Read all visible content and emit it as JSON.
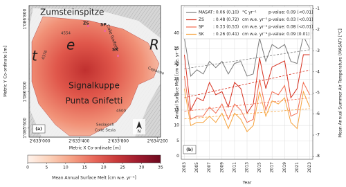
{
  "chart_data": [
    {
      "type": "map",
      "panel_label": "(a)",
      "xlabel": "Metric X Co-ordinate [m]",
      "ylabel": "Metric Y Co-ordinate [m]",
      "xlim": [
        2632890,
        2634230
      ],
      "ylim": [
        1085500,
        1086950
      ],
      "xticks": [
        {
          "value": 2633000,
          "label": "2'633'000"
        },
        {
          "value": 2633400,
          "label": "2'633'400"
        },
        {
          "value": 2633800,
          "label": "2'633'800"
        },
        {
          "value": 2634200,
          "label": "2'634'200"
        }
      ],
      "yticks": [
        {
          "value": 1086800,
          "label": "1'086'800"
        },
        {
          "value": 1086000,
          "label": "1'086'000"
        },
        {
          "value": 1085600,
          "label": "1'085'600"
        }
      ],
      "labels": [
        "Zumsteinspitze",
        "ZS",
        "SP",
        "Colle Gnifetti",
        "4554",
        "4376",
        "SK",
        "Signalkuppe",
        "Punta Gnifetti",
        "Capanna",
        "4500",
        "Sesiajoch",
        "Colle Sesia",
        "t",
        "e",
        "R",
        "N"
      ],
      "colorbar": {
        "label": "Mean Annual Surface Melt [cm w.e. yr⁻¹]",
        "lim": [
          0,
          35
        ],
        "ticks": [
          0,
          5,
          10,
          15,
          20,
          25,
          30,
          35
        ],
        "colors": [
          "#fff3ec",
          "#fbd0b8",
          "#f5a084",
          "#e8685a",
          "#c93a3a",
          "#9e1b2e",
          "#6e0a1f"
        ]
      }
    },
    {
      "type": "line",
      "panel_label": "(b)",
      "xlabel": "Year",
      "ylabel": "Annual Surface Melt [cm w.e. yr⁻¹]",
      "y2label": "Mean Annual Summer Air Temperature (MASAT) [°C]",
      "x": [
        2003,
        2004,
        2005,
        2006,
        2007,
        2008,
        2009,
        2010,
        2011,
        2012,
        2013,
        2014,
        2015,
        2016,
        2017,
        2018,
        2019,
        2020,
        2021,
        2022,
        2023
      ],
      "xlim": [
        2002.5,
        2023.5
      ],
      "xticks": [
        2003,
        2005,
        2007,
        2009,
        2011,
        2013,
        2015,
        2017,
        2019,
        2021,
        2023
      ],
      "ylim": [
        -1,
        49
      ],
      "yticks": [
        0,
        5,
        10,
        15,
        20,
        25,
        30,
        35,
        40
      ],
      "y2lim": [
        -8.15,
        -0.85
      ],
      "y2ticks": [
        -1,
        -2,
        -3,
        -4,
        -5,
        -6,
        -7,
        -8
      ],
      "grid": true,
      "series": [
        {
          "name": "MASAT",
          "trend": ":  0.06  (0.10)",
          "unit": "°C yr⁻¹",
          "p_value": "p-value:  0.09 (<0.01)",
          "color": "#7a7a7a",
          "axis": "y2",
          "values": [
            -2.4,
            -4.2,
            -3.9,
            -4.1,
            -3.5,
            -3.8,
            -3.5,
            -4.1,
            -3.6,
            -3.5,
            -4.2,
            -4.1,
            -2.4,
            -3.5,
            -2.7,
            -2.9,
            -2.7,
            -3.5,
            -3.6,
            -2.3,
            -2.9
          ]
        },
        {
          "name": "ZS",
          "trend": ":  0.48  (0.72)",
          "unit": "cm w.e. yr⁻¹",
          "p_value": "p-value:  0.03 (<0.01)",
          "color": "#d7301f",
          "values": [
            33,
            15,
            19,
            18,
            24,
            20,
            21,
            16,
            24,
            22,
            14,
            17,
            32,
            22,
            29,
            30,
            31,
            19,
            22,
            33,
            33
          ]
        },
        {
          "name": "SP",
          "trend": ":  0.33  (0.53)",
          "unit": "cm w.e. yr⁻¹",
          "p_value": "p-value:  0.08 (<0.01)",
          "color": "#f26b4e",
          "values": [
            26,
            12,
            13,
            13,
            16,
            14,
            17,
            12,
            17,
            15,
            11,
            12,
            25,
            15,
            21,
            20,
            23,
            13,
            14,
            24,
            20
          ]
        },
        {
          "name": "SK",
          "trend": ":  0.26  (0.41)",
          "unit": "cm w.e. yr⁻¹",
          "p_value": "p-value:  0.09 (0.01)",
          "color": "#f6a23c",
          "values": [
            22,
            10,
            11,
            11,
            13,
            11,
            14,
            9,
            14,
            12,
            8,
            10,
            21,
            13,
            18,
            17,
            19,
            11,
            9,
            21,
            16
          ]
        }
      ]
    }
  ]
}
